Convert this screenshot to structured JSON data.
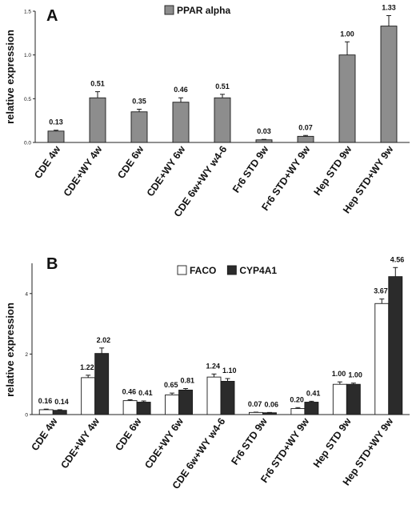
{
  "colors": {
    "ppar": "#8d8d8d",
    "faco": "#ffffff",
    "cyp4a1": "#2b2b2b",
    "outline": "#1a1a1a"
  },
  "chart_data": [
    {
      "panel": "A",
      "type": "bar",
      "ylabel": "relative expression",
      "ylim": [
        0,
        1.5
      ],
      "yticks": [
        "0.0",
        "0.5",
        "1.0",
        "1.5"
      ],
      "categories": [
        "CDE 4w",
        "CDE+WY 4w",
        "CDE 6w",
        "CDE+WY 6w",
        "CDE 6w+WY w4-6",
        "Fr6 STD 9w",
        "Fr6 STD+WY 9w",
        "Hep STD 9w",
        "Hep STD+WY 9w"
      ],
      "legend": [
        {
          "name": "PPAR alpha",
          "color": "#8d8d8d"
        }
      ],
      "series": [
        {
          "name": "PPAR alpha",
          "values": [
            0.13,
            0.51,
            0.35,
            0.46,
            0.51,
            0.03,
            0.07,
            1.0,
            1.33
          ],
          "errors": [
            0.01,
            0.07,
            0.03,
            0.05,
            0.04,
            0.005,
            0.01,
            0.15,
            0.12
          ],
          "labels": [
            "0.13",
            "0.51",
            "0.35",
            "0.46",
            "0.51",
            "0.03",
            "0.07",
            "1.00",
            "1.33"
          ]
        }
      ],
      "legend_position": "top-center",
      "grid": false
    },
    {
      "panel": "B",
      "type": "bar",
      "ylabel": "relative expression",
      "ylim": [
        0,
        5
      ],
      "yticks": [
        "0",
        "2",
        "4"
      ],
      "categories": [
        "CDE 4w",
        "CDE+WY 4w",
        "CDE 6w",
        "CDE+WY 6w",
        "CDE 6w+WY w4-6",
        "Fr6 STD 9w",
        "Fr6 STD+WY 9w",
        "Hep STD 9w",
        "Hep STD+WY 9w"
      ],
      "legend": [
        {
          "name": "FACO",
          "color": "#ffffff"
        },
        {
          "name": "CYP4A1",
          "color": "#2b2b2b"
        }
      ],
      "series": [
        {
          "name": "FACO",
          "values": [
            0.16,
            1.22,
            0.46,
            0.65,
            1.24,
            0.07,
            0.2,
            1.0,
            3.67
          ],
          "errors": [
            0.02,
            0.08,
            0.03,
            0.06,
            0.1,
            0.01,
            0.03,
            0.08,
            0.15
          ],
          "labels": [
            "0.16",
            "1.22",
            "0.46",
            "0.65",
            "1.24",
            "0.07",
            "0.20",
            "1.00",
            "3.67"
          ]
        },
        {
          "name": "CYP4A1",
          "values": [
            0.14,
            2.02,
            0.41,
            0.81,
            1.1,
            0.06,
            0.41,
            1.0,
            4.56
          ],
          "errors": [
            0.02,
            0.18,
            0.04,
            0.05,
            0.09,
            0.01,
            0.03,
            0.04,
            0.3
          ],
          "labels": [
            "0.14",
            "2.02",
            "0.41",
            "0.81",
            "1.10",
            "0.06",
            "0.41",
            "1.00",
            "4.56"
          ]
        }
      ],
      "legend_position": "top-center",
      "grid": false
    }
  ]
}
